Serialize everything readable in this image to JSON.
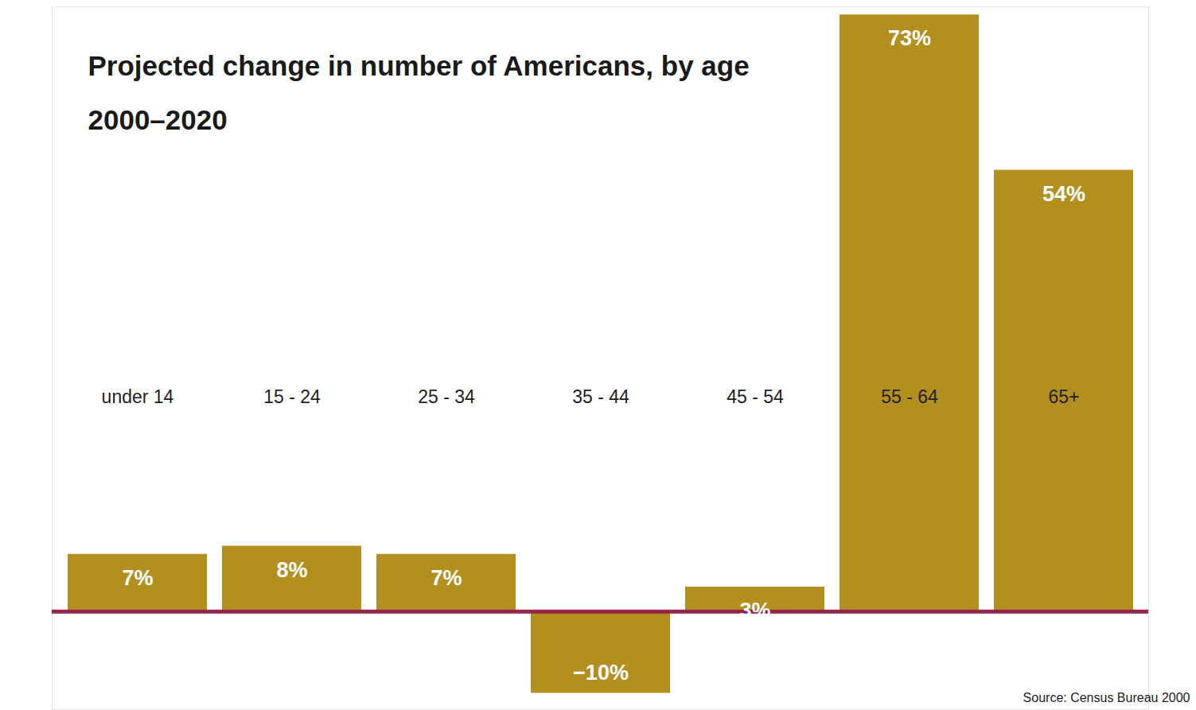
{
  "chart_data": {
    "type": "bar",
    "title": "Projected change in number of Americans, by age",
    "subtitle": "2000–2020",
    "caption": "Source: Census Bureau 2000",
    "categories": [
      "under 14",
      "15 - 24",
      "25 - 34",
      "35 - 44",
      "45 - 54",
      "55 - 64",
      "65+"
    ],
    "values": [
      7,
      8,
      7,
      -10,
      3,
      73,
      54
    ],
    "value_labels": [
      "7%",
      "8%",
      "7%",
      "−10%",
      "3%",
      "73%",
      "54%"
    ],
    "color": "#b38f1f",
    "ylim": [
      -12,
      74
    ],
    "data_labels": true,
    "tick_labels": false,
    "grid": false
  }
}
